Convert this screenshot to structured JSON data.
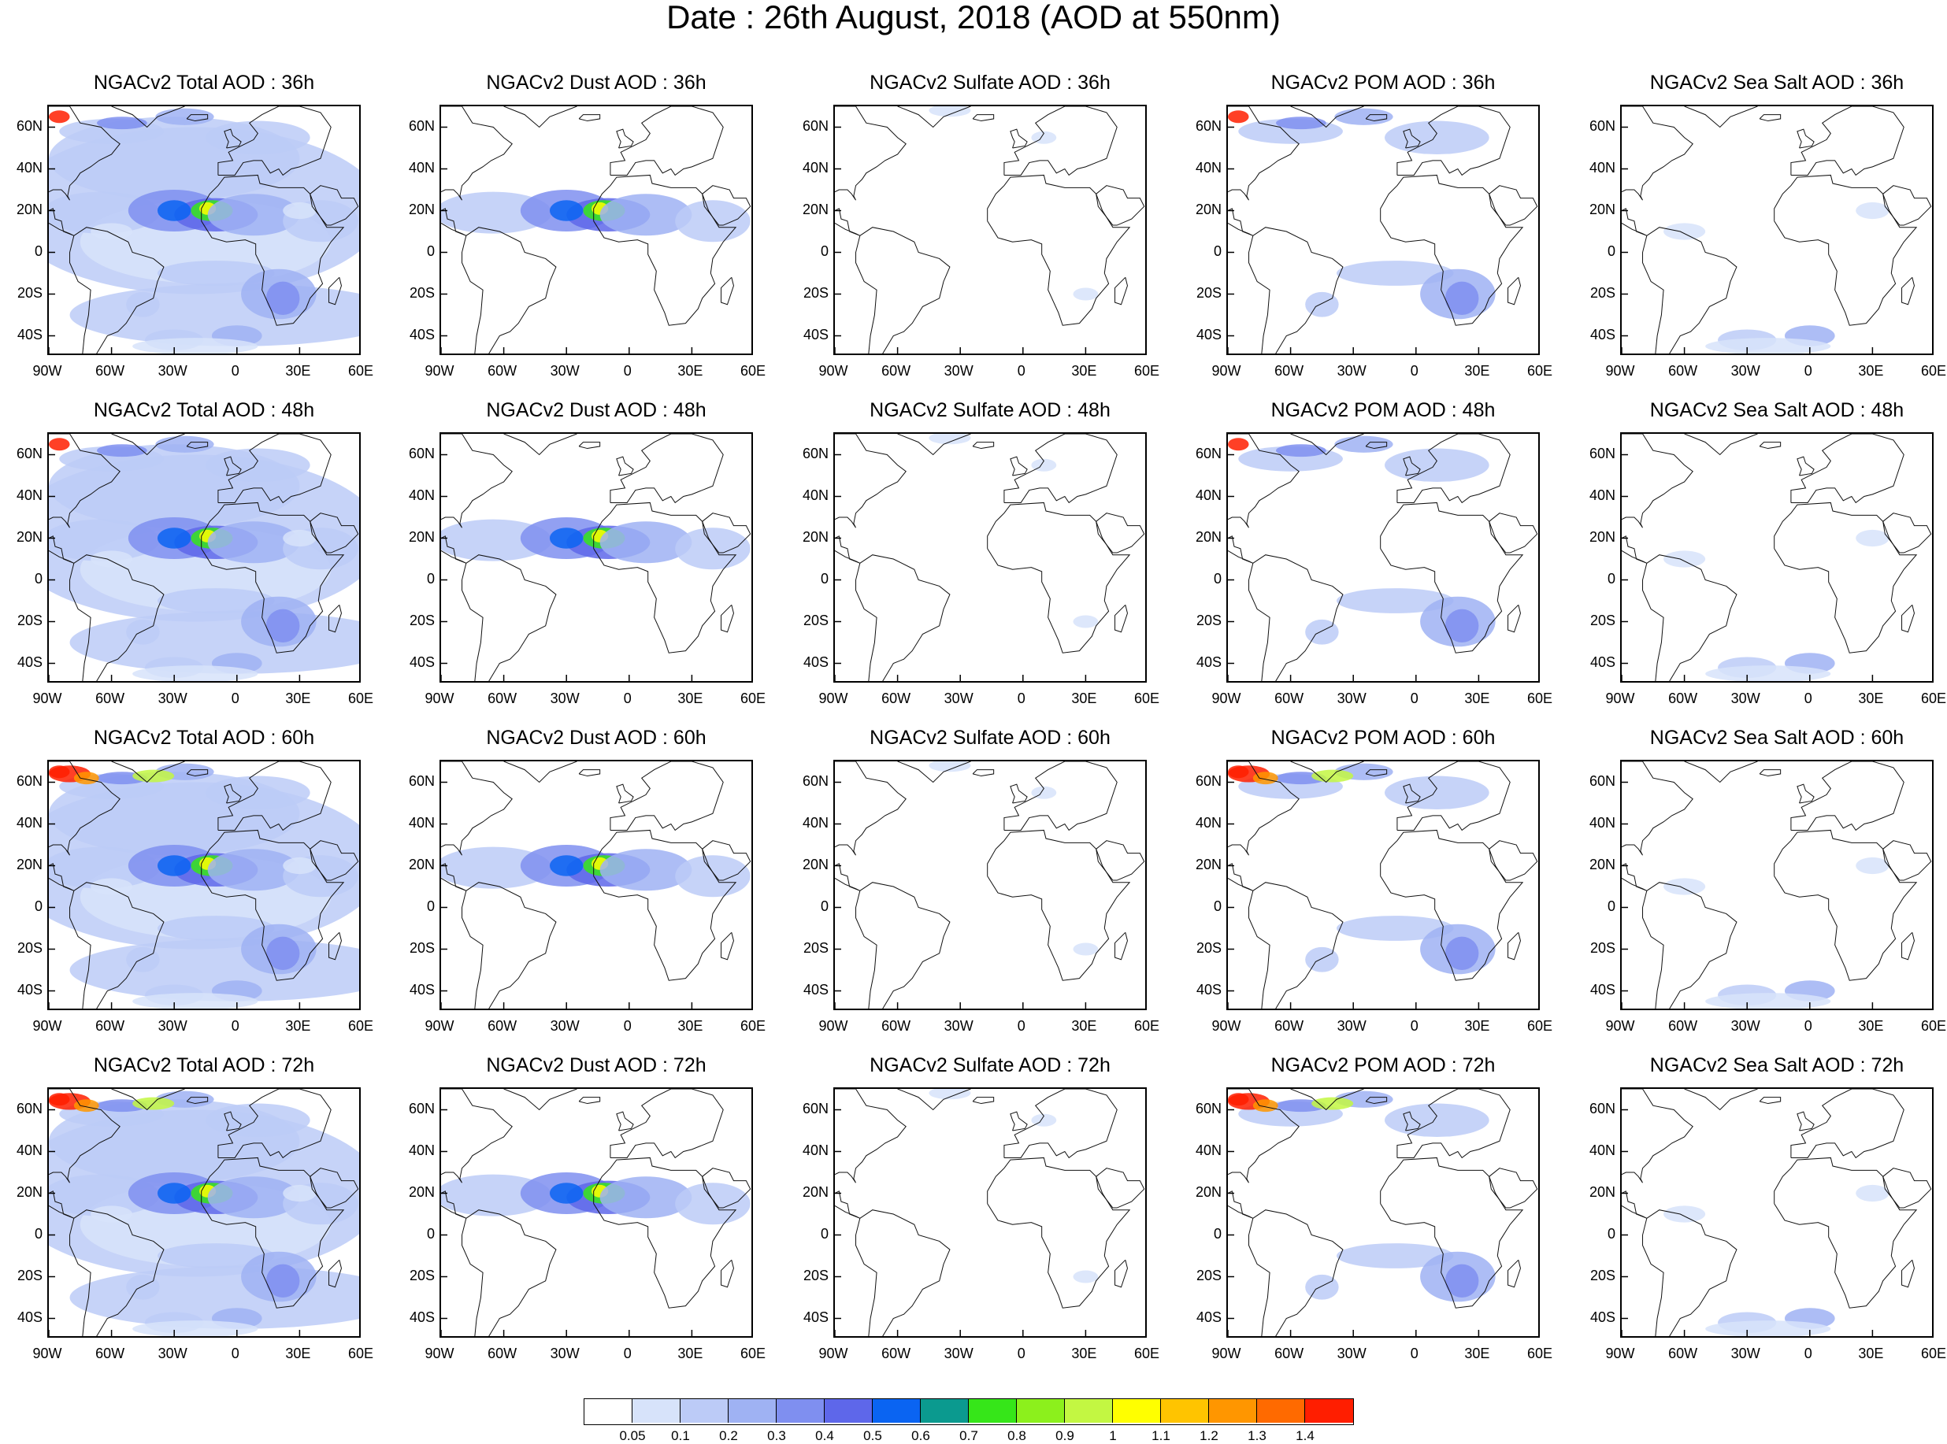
{
  "title": "Date : 26th August, 2018 (AOD at 550nm)",
  "lat_labels": [
    "60N",
    "40N",
    "20N",
    "0",
    "20S",
    "40S"
  ],
  "lon_labels": [
    "90W",
    "60W",
    "30W",
    "0",
    "30E",
    "60E"
  ],
  "panels": [
    {
      "title": "NGACv2 Total AOD : 36h",
      "species": "total",
      "hour": 36
    },
    {
      "title": "NGACv2 Dust AOD : 36h",
      "species": "dust",
      "hour": 36
    },
    {
      "title": "NGACv2 Sulfate AOD : 36h",
      "species": "sulfate",
      "hour": 36
    },
    {
      "title": "NGACv2 POM AOD : 36h",
      "species": "pom",
      "hour": 36
    },
    {
      "title": "NGACv2 Sea Salt AOD : 36h",
      "species": "seasalt",
      "hour": 36
    },
    {
      "title": "NGACv2 Total AOD : 48h",
      "species": "total",
      "hour": 48
    },
    {
      "title": "NGACv2 Dust AOD : 48h",
      "species": "dust",
      "hour": 48
    },
    {
      "title": "NGACv2 Sulfate AOD : 48h",
      "species": "sulfate",
      "hour": 48
    },
    {
      "title": "NGACv2 POM AOD : 48h",
      "species": "pom",
      "hour": 48
    },
    {
      "title": "NGACv2 Sea Salt AOD : 48h",
      "species": "seasalt",
      "hour": 48
    },
    {
      "title": "NGACv2 Total AOD : 60h",
      "species": "total",
      "hour": 60
    },
    {
      "title": "NGACv2 Dust AOD : 60h",
      "species": "dust",
      "hour": 60
    },
    {
      "title": "NGACv2 Sulfate AOD : 60h",
      "species": "sulfate",
      "hour": 60
    },
    {
      "title": "NGACv2 POM AOD : 60h",
      "species": "pom",
      "hour": 60
    },
    {
      "title": "NGACv2 Sea Salt AOD : 60h",
      "species": "seasalt",
      "hour": 60
    },
    {
      "title": "NGACv2 Total AOD : 72h",
      "species": "total",
      "hour": 72
    },
    {
      "title": "NGACv2 Dust AOD : 72h",
      "species": "dust",
      "hour": 72
    },
    {
      "title": "NGACv2 Sulfate AOD : 72h",
      "species": "sulfate",
      "hour": 72
    },
    {
      "title": "NGACv2 POM AOD : 72h",
      "species": "pom",
      "hour": 72
    },
    {
      "title": "NGACv2 Sea Salt  AOD : 72h",
      "species": "seasalt",
      "hour": 72
    }
  ],
  "colorbar": {
    "labels": [
      "0.05",
      "0.1",
      "0.2",
      "0.3",
      "0.4",
      "0.5",
      "0.6",
      "0.7",
      "0.8",
      "0.9",
      "1",
      "1.1",
      "1.2",
      "1.3",
      "1.4"
    ],
    "colors": [
      "#ffffff",
      "#d7e3fa",
      "#bccbf7",
      "#9fb2f3",
      "#7f8ff0",
      "#5e67ea",
      "#0a64f2",
      "#0b9a8f",
      "#36e619",
      "#8cf01c",
      "#c3f742",
      "#ffff00",
      "#ffc400",
      "#ff9600",
      "#ff6a00",
      "#ff1e00"
    ]
  }
}
